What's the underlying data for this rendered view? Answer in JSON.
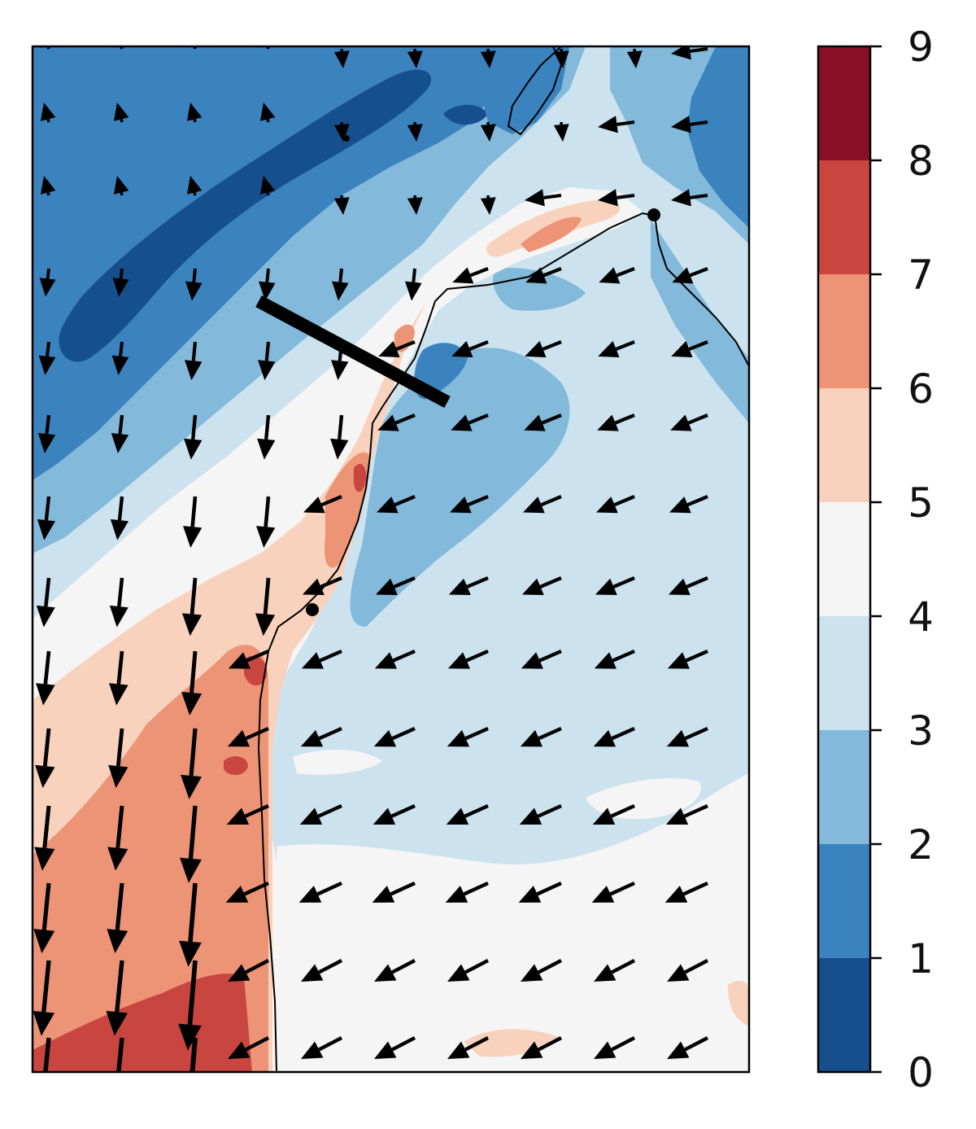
{
  "figure": {
    "type": "filled contour map with wind vectors",
    "colormap": "RdBu_r",
    "axes_ticks": "none"
  },
  "colorbar": {
    "ticks": [
      "0",
      "1",
      "2",
      "3",
      "4",
      "5",
      "6",
      "7",
      "8",
      "9"
    ],
    "levels": [
      {
        "from": 0,
        "to": 1,
        "color": "#164f8d"
      },
      {
        "from": 1,
        "to": 2,
        "color": "#3a83be"
      },
      {
        "from": 2,
        "to": 3,
        "color": "#83b9db"
      },
      {
        "from": 3,
        "to": 4,
        "color": "#cce2ef"
      },
      {
        "from": 4,
        "to": 5,
        "color": "#f5f5f5"
      },
      {
        "from": 5,
        "to": 6,
        "color": "#f9d2bd"
      },
      {
        "from": 6,
        "to": 7,
        "color": "#ec9475"
      },
      {
        "from": 7,
        "to": 8,
        "color": "#c94640"
      },
      {
        "from": 8,
        "to": 9,
        "color": "#8a1125"
      }
    ]
  },
  "map": {
    "coastline_color": "#000000",
    "cross_section_line": "thick black segment",
    "station_markers": 3,
    "vector_color": "#000000"
  }
}
